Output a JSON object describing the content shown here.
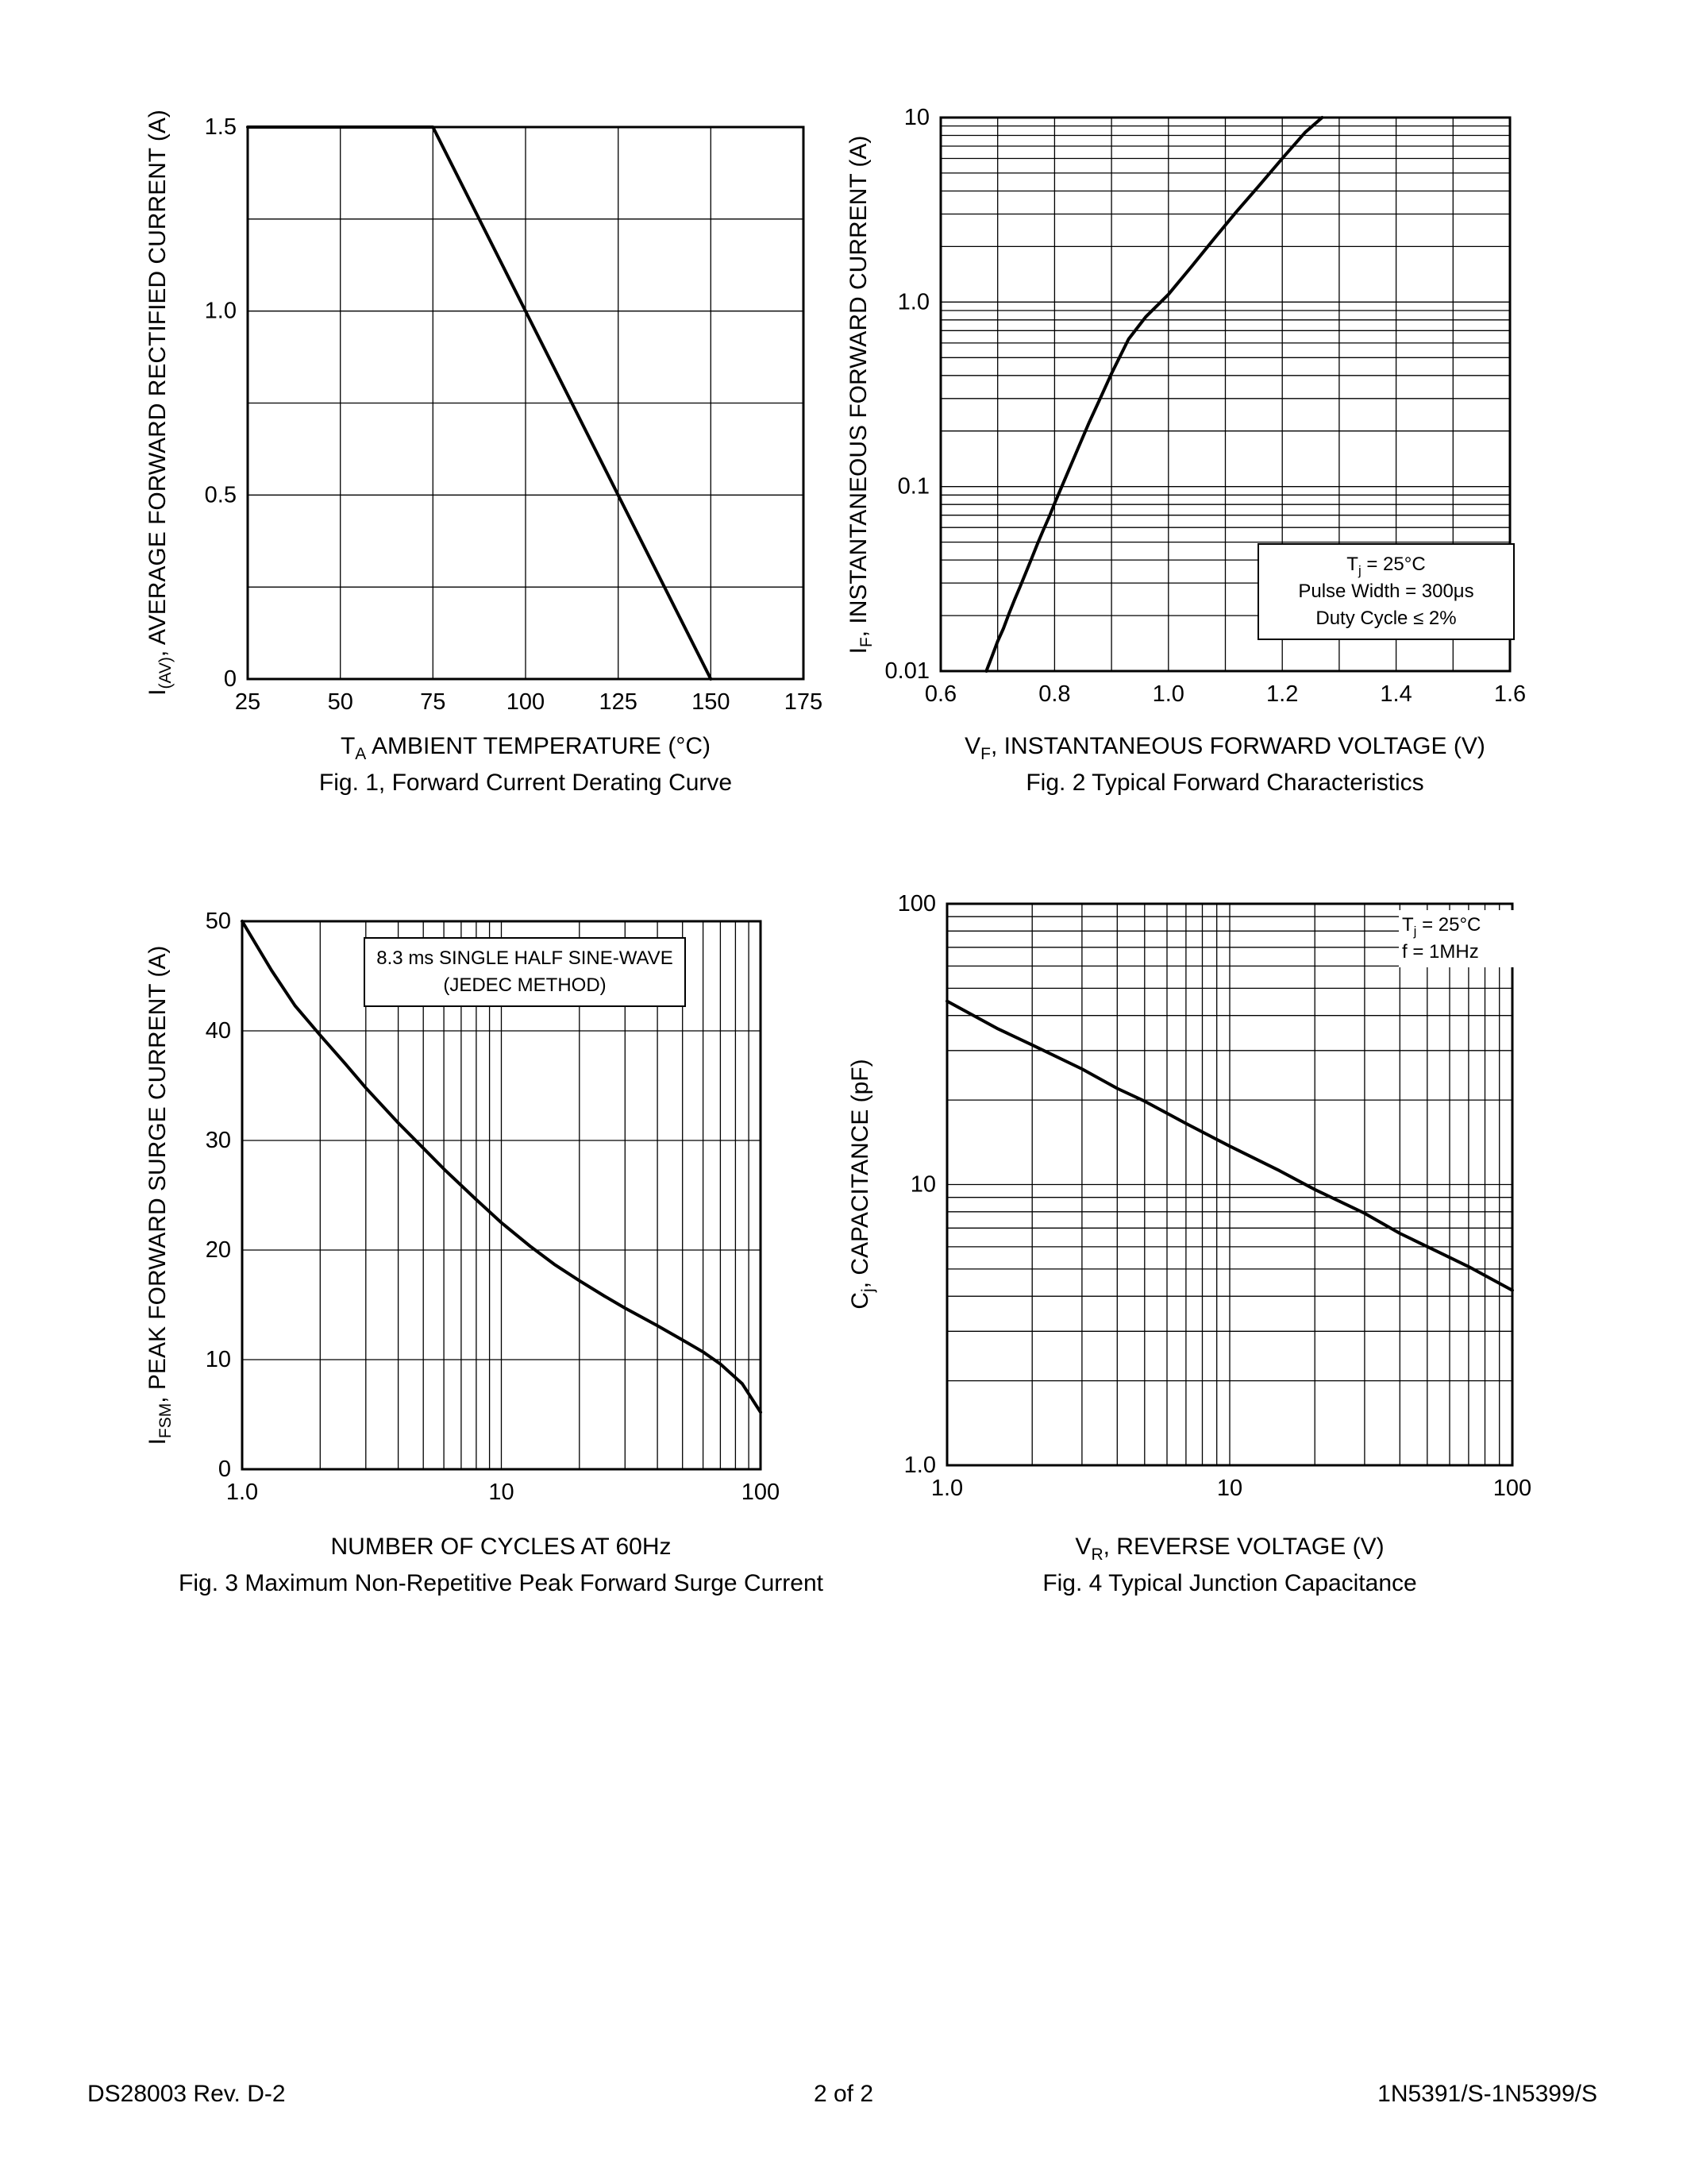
{
  "page": {
    "footer": {
      "left": "DS28003 Rev. D-2",
      "center": "2 of 2",
      "right": "1N5391/S-1N5399/S"
    },
    "colors": {
      "ink": "#000000",
      "paper": "#ffffff"
    }
  },
  "chart_data": [
    {
      "id": "fig1",
      "type": "line",
      "title": "Fig. 1, Forward Current Derating Curve",
      "xlabel": [
        {
          "t": "T"
        },
        {
          "t": "A",
          "sub": true
        },
        {
          "t": "  AMBIENT TEMPERATURE (°C)"
        }
      ],
      "ylabel": [
        {
          "t": "I"
        },
        {
          "t": "(AV)",
          "sub": true
        },
        {
          "t": ", AVERAGE FORWARD RECTIFIED CURRENT (A)"
        }
      ],
      "x_axis": {
        "scale": "linear",
        "min": 25,
        "max": 175,
        "grid_step": 25,
        "ticks": [
          25,
          50,
          75,
          100,
          125,
          150,
          175
        ],
        "tick_labels": [
          "25",
          "50",
          "75",
          "100",
          "125",
          "150",
          "175"
        ]
      },
      "y_axis": {
        "scale": "linear",
        "min": 0,
        "max": 1.5,
        "grid_step": 0.25,
        "ticks": [
          0,
          0.5,
          1,
          1.5
        ],
        "tick_labels": [
          "0",
          "0.5",
          "1.0",
          "1.5"
        ]
      },
      "grid": true,
      "series": [
        {
          "name": "derating-curve",
          "points": [
            [
              25,
              1.5
            ],
            [
              75,
              1.5
            ],
            [
              150,
              0
            ]
          ]
        }
      ]
    },
    {
      "id": "fig2",
      "type": "line",
      "title": "Fig. 2  Typical Forward Characteristics",
      "xlabel": [
        {
          "t": "V"
        },
        {
          "t": "F",
          "sub": true
        },
        {
          "t": ", INSTANTANEOUS FORWARD VOLTAGE (V)"
        }
      ],
      "ylabel": [
        {
          "t": "I"
        },
        {
          "t": "F",
          "sub": true
        },
        {
          "t": ", INSTANTANEOUS FORWARD CURRENT (A)"
        }
      ],
      "x_axis": {
        "scale": "linear",
        "min": 0.6,
        "max": 1.6,
        "grid_step": 0.1,
        "ticks": [
          0.6,
          0.8,
          1,
          1.2,
          1.4,
          1.6
        ],
        "tick_labels": [
          "0.6",
          "0.8",
          "1.0",
          "1.2",
          "1.4",
          "1.6"
        ]
      },
      "y_axis": {
        "scale": "log",
        "min": 0.01,
        "max": 10,
        "ticks": [
          0.01,
          0.1,
          1,
          10
        ],
        "tick_labels": [
          "0.01",
          "0.1",
          "1.0",
          "10"
        ]
      },
      "grid": true,
      "series": [
        {
          "name": "forward-characteristic-curve",
          "points": [
            [
              0.68,
              0.01
            ],
            [
              0.69,
              0.012
            ],
            [
              0.7,
              0.0145
            ],
            [
              0.71,
              0.017
            ],
            [
              0.72,
              0.0205
            ],
            [
              0.73,
              0.0245
            ],
            [
              0.74,
              0.029
            ],
            [
              0.75,
              0.0345
            ],
            [
              0.76,
              0.041
            ],
            [
              0.77,
              0.049
            ],
            [
              0.78,
              0.058
            ],
            [
              0.79,
              0.068
            ],
            [
              0.8,
              0.081
            ],
            [
              0.82,
              0.113
            ],
            [
              0.84,
              0.158
            ],
            [
              0.86,
              0.22
            ],
            [
              0.88,
              0.3
            ],
            [
              0.9,
              0.41
            ],
            [
              0.93,
              0.63
            ],
            [
              0.96,
              0.83
            ],
            [
              1.0,
              1.1
            ],
            [
              1.04,
              1.55
            ],
            [
              1.08,
              2.2
            ],
            [
              1.12,
              3.1
            ],
            [
              1.16,
              4.3
            ],
            [
              1.2,
              6.0
            ],
            [
              1.24,
              8.3
            ],
            [
              1.27,
              10.0
            ]
          ]
        }
      ],
      "annotation": {
        "lines": [
          [
            {
              "t": "T"
            },
            {
              "t": "j",
              "sub": true
            },
            {
              "t": " = 25°C"
            }
          ],
          [
            {
              "t": "Pulse Width = 300μs"
            }
          ],
          [
            {
              "t": "Duty Cycle ≤ 2%"
            }
          ]
        ]
      }
    },
    {
      "id": "fig3",
      "type": "line",
      "title": "Fig. 3  Maximum Non-Repetitive Peak Forward Surge Current",
      "xlabel": [
        {
          "t": "NUMBER OF CYCLES AT 60Hz"
        }
      ],
      "ylabel": [
        {
          "t": "I"
        },
        {
          "t": "FSM",
          "sub": true
        },
        {
          "t": ", PEAK FORWARD SURGE CURRENT (A)"
        }
      ],
      "x_axis": {
        "scale": "log",
        "min": 1,
        "max": 100,
        "ticks": [
          1,
          10,
          100
        ],
        "tick_labels": [
          "1.0",
          "10",
          "100"
        ]
      },
      "y_axis": {
        "scale": "linear",
        "min": 0,
        "max": 50,
        "grid_step": 10,
        "ticks": [
          0,
          10,
          20,
          30,
          40,
          50
        ],
        "tick_labels": [
          "0",
          "10",
          "20",
          "30",
          "40",
          "50"
        ]
      },
      "grid": true,
      "series": [
        {
          "name": "surge-current-curve",
          "points": [
            [
              1,
              50
            ],
            [
              1.3,
              45.5
            ],
            [
              1.6,
              42.3
            ],
            [
              2,
              39.6
            ],
            [
              2.5,
              37
            ],
            [
              3,
              34.8
            ],
            [
              4,
              31.6
            ],
            [
              5,
              29.3
            ],
            [
              6,
              27.4
            ],
            [
              8,
              24.6
            ],
            [
              10,
              22.5
            ],
            [
              13,
              20.3
            ],
            [
              16,
              18.7
            ],
            [
              20,
              17.2
            ],
            [
              25,
              15.8
            ],
            [
              30,
              14.7
            ],
            [
              40,
              13.1
            ],
            [
              50,
              11.8
            ],
            [
              60,
              10.7
            ],
            [
              70,
              9.6
            ],
            [
              85,
              7.8
            ],
            [
              100,
              5.2
            ]
          ]
        }
      ],
      "annotation": {
        "lines": [
          [
            {
              "t": "8.3 ms SINGLE HALF SINE-WAVE"
            }
          ],
          [
            {
              "t": "(JEDEC METHOD)"
            }
          ]
        ]
      }
    },
    {
      "id": "fig4",
      "type": "line",
      "title": "Fig. 4  Typical Junction Capacitance",
      "xlabel": [
        {
          "t": "V"
        },
        {
          "t": "R",
          "sub": true
        },
        {
          "t": ", REVERSE VOLTAGE (V)"
        }
      ],
      "ylabel": [
        {
          "t": "C"
        },
        {
          "t": "j",
          "sub": true
        },
        {
          "t": ", CAPACITANCE (pF)"
        }
      ],
      "x_axis": {
        "scale": "log",
        "min": 1,
        "max": 100,
        "ticks": [
          1,
          10,
          100
        ],
        "tick_labels": [
          "1.0",
          "10",
          "100"
        ]
      },
      "y_axis": {
        "scale": "log",
        "min": 1,
        "max": 100,
        "ticks": [
          1,
          10,
          100
        ],
        "tick_labels": [
          "1.0",
          "10",
          "100"
        ]
      },
      "grid": true,
      "series": [
        {
          "name": "junction-capacitance-line",
          "points": [
            [
              1,
              45
            ],
            [
              1.5,
              36
            ],
            [
              2,
              31.4
            ],
            [
              3,
              25.8
            ],
            [
              4,
              22
            ],
            [
              5,
              19.8
            ],
            [
              7,
              16.5
            ],
            [
              10,
              13.7
            ],
            [
              15,
              11.2
            ],
            [
              20,
              9.6
            ],
            [
              30,
              7.9
            ],
            [
              40,
              6.7
            ],
            [
              60,
              5.5
            ],
            [
              70,
              5.1
            ],
            [
              100,
              4.2
            ]
          ]
        }
      ],
      "annotation": {
        "lines": [
          [
            {
              "t": "T"
            },
            {
              "t": "j",
              "sub": true
            },
            {
              "t": " = 25°C"
            }
          ],
          [
            {
              "t": "f = 1MHz"
            }
          ]
        ]
      }
    }
  ]
}
